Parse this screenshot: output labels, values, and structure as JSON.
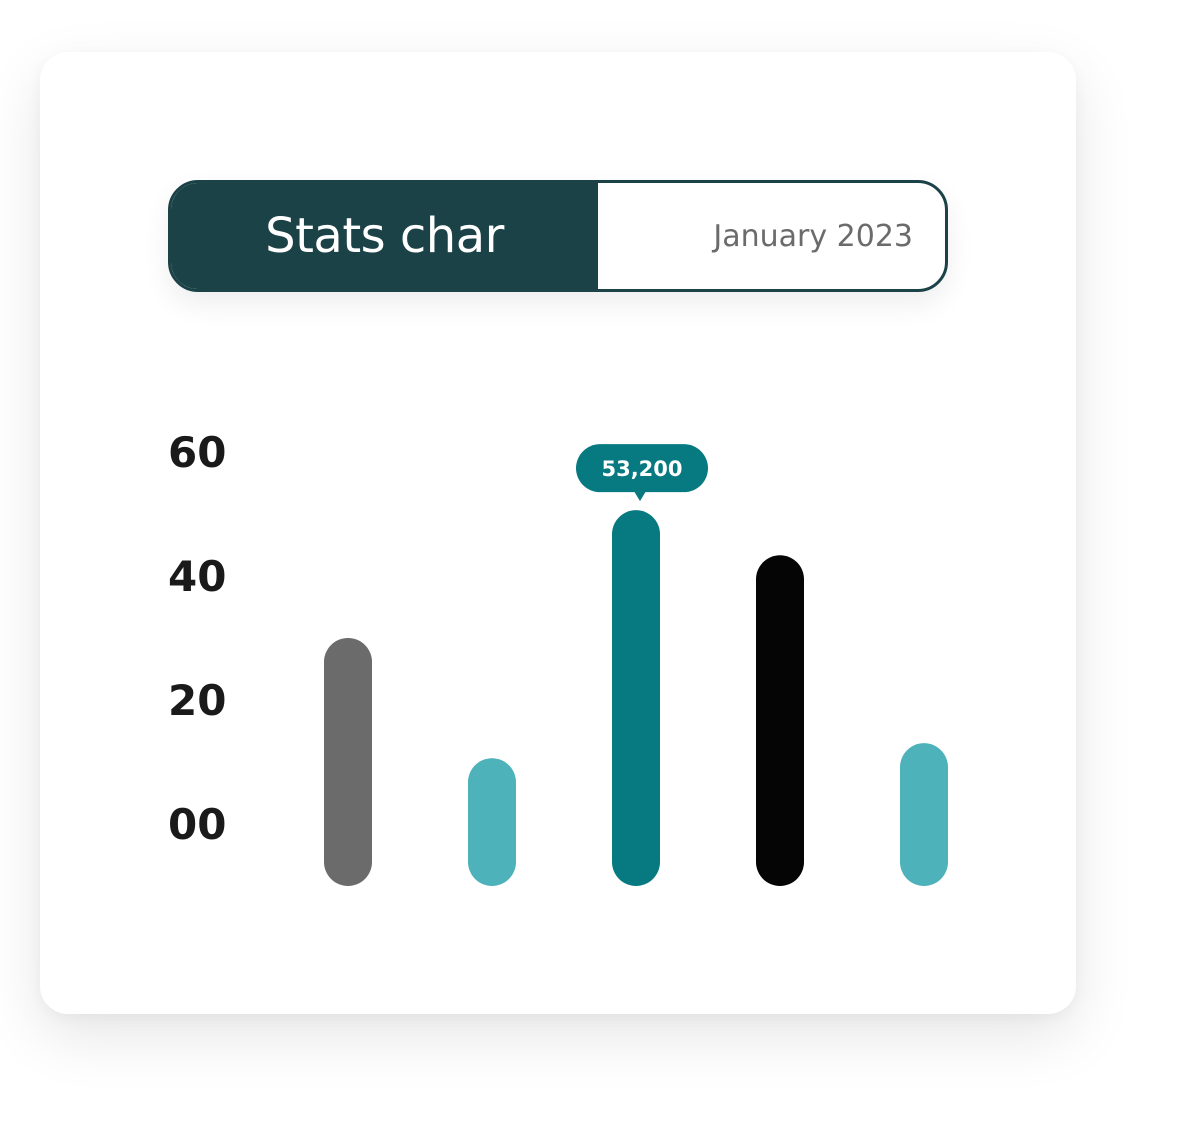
{
  "header": {
    "title": "Stats char",
    "date": "January 2023"
  },
  "colors": {
    "header_bg": "#1b4347",
    "tooltip_bg": "#077a81"
  },
  "chart_data": {
    "type": "bar",
    "title": "",
    "xlabel": "",
    "ylabel": "",
    "y_ticks": [
      "00",
      "20",
      "40",
      "60"
    ],
    "y_tick_values": [
      0,
      20,
      40,
      60
    ],
    "ylim": [
      0,
      60
    ],
    "grid": false,
    "values": [
      33,
      17,
      50,
      44,
      19
    ],
    "bar_colors": [
      "#6b6b6b",
      "#4db2ba",
      "#077a81",
      "#050505",
      "#4db2ba"
    ],
    "highlight_index": 2,
    "tooltip": "53,200"
  }
}
